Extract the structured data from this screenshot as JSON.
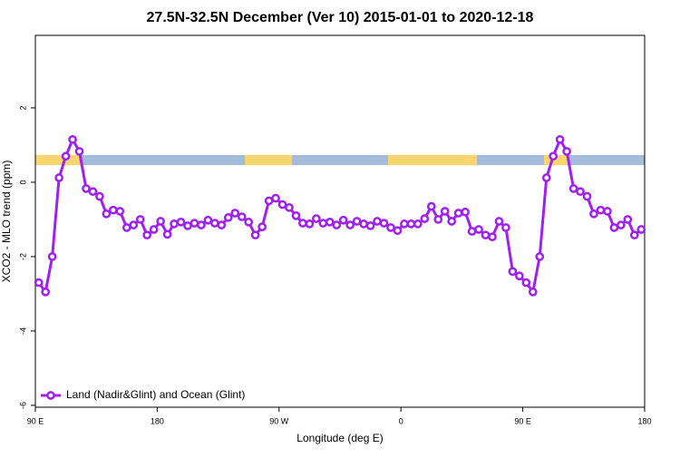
{
  "chart_data": {
    "type": "line",
    "title": "27.5N-32.5N December (Ver 10)   2015-01-01 to 2020-12-18",
    "x_label": "Longitude (deg E)",
    "y_label": "XCO2 - MLO trend (ppm)",
    "x": [
      92.5,
      97.5,
      102.5,
      107.5,
      112.5,
      117.5,
      122.5,
      127.5,
      132.5,
      137.5,
      142.5,
      147.5,
      152.5,
      157.5,
      162.5,
      167.5,
      172.5,
      177.5,
      182.5,
      187.5,
      192.5,
      197.5,
      202.5,
      207.5,
      212.5,
      217.5,
      222.5,
      227.5,
      232.5,
      237.5,
      242.5,
      247.5,
      252.5,
      257.5,
      262.5,
      267.5,
      272.5,
      277.5,
      282.5,
      287.5,
      292.5,
      297.5,
      302.5,
      307.5,
      312.5,
      317.5,
      322.5,
      327.5,
      332.5,
      337.5,
      342.5,
      347.5,
      352.5,
      357.5,
      362.5,
      367.5,
      372.5,
      377.5,
      382.5,
      387.5,
      392.5,
      397.5,
      402.5,
      407.5,
      412.5,
      417.5,
      422.5,
      427.5,
      432.5,
      437.5,
      442.5,
      447.5,
      452.5,
      457.5,
      462.5,
      467.5,
      472.5,
      477.5,
      482.5,
      487.5,
      492.5,
      497.5,
      502.5,
      507.5,
      512.5,
      517.5,
      522.5,
      527.5,
      532.5,
      537.5
    ],
    "series": [
      {
        "name": "Land (Nadir&Glint) and Ocean (Glint)",
        "color": "#a020f0",
        "values": [
          -2.7,
          -2.95,
          -2.0,
          0.12,
          0.7,
          1.15,
          0.83,
          -0.17,
          -0.25,
          -0.38,
          -0.85,
          -0.75,
          -0.78,
          -1.22,
          -1.15,
          -1.0,
          -1.42,
          -1.27,
          -1.05,
          -1.4,
          -1.12,
          -1.07,
          -1.17,
          -1.1,
          -1.15,
          -1.02,
          -1.1,
          -1.15,
          -0.95,
          -0.83,
          -0.93,
          -1.07,
          -1.42,
          -1.2,
          -0.5,
          -0.43,
          -0.6,
          -0.68,
          -0.9,
          -1.1,
          -1.12,
          -0.98,
          -1.1,
          -1.07,
          -1.15,
          -1.02,
          -1.15,
          -1.05,
          -1.12,
          -1.17,
          -1.05,
          -1.1,
          -1.22,
          -1.3,
          -1.12,
          -1.12,
          -1.12,
          -0.98,
          -0.65,
          -1.0,
          -0.78,
          -1.05,
          -0.83,
          -0.8,
          -1.32,
          -1.27,
          -1.42,
          -1.47,
          -1.05,
          -1.22,
          -2.4,
          -2.52,
          -2.7,
          -2.95,
          -2.0,
          0.12,
          0.7,
          1.15,
          0.83,
          -0.17,
          -0.25,
          -0.38,
          -0.85,
          -0.75,
          -0.78,
          -1.22,
          -1.15,
          -1.0,
          -1.42,
          -1.27
        ]
      }
    ],
    "xlim": [
      90,
      540
    ],
    "xticks": [
      {
        "value": 90,
        "label": "90 E"
      },
      180,
      {
        "value": 270,
        "label": "90 W"
      },
      0,
      {
        "value": 450,
        "label": "90 E"
      },
      {
        "value": 540,
        "label": "180"
      }
    ],
    "ylim": [
      -6.05,
      3.95
    ],
    "yticks": [
      -6,
      -4,
      -2,
      0,
      2
    ],
    "legend": "bottom-left"
  }
}
